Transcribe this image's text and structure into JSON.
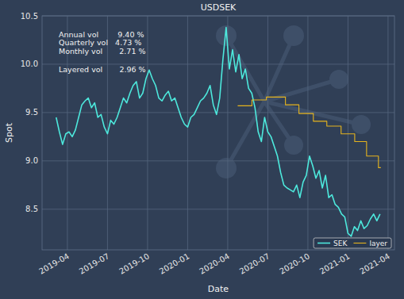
{
  "chart_data": {
    "type": "line",
    "title": "USDSEK",
    "x_label": "Date",
    "y_label": "Spot",
    "xlim": [
      2019.092,
      2021.29
    ],
    "ylim": [
      8.08,
      10.5
    ],
    "xticks": [
      {
        "value": 2019.25,
        "label": "2019-04"
      },
      {
        "value": 2019.5,
        "label": "2019-07"
      },
      {
        "value": 2019.75,
        "label": "2019-10"
      },
      {
        "value": 2020.0,
        "label": "2020-01"
      },
      {
        "value": 2020.25,
        "label": "2020-04"
      },
      {
        "value": 2020.5,
        "label": "2020-07"
      },
      {
        "value": 2020.75,
        "label": "2020-10"
      },
      {
        "value": 2021.0,
        "label": "2021-01"
      },
      {
        "value": 2021.25,
        "label": "2021-04"
      }
    ],
    "yticks": [
      8.5,
      {
        "value": 9,
        "label": "9.0"
      },
      9.5,
      {
        "value": 10,
        "label": "10.0"
      },
      10.5
    ],
    "grid": true,
    "legend": "lower right",
    "annotations": [
      "Annual vol        9.40 %",
      "Quarterly vol   4.73 %",
      "Monthly vol       2.71 %",
      "Layered vol       2.96 %"
    ],
    "series": [
      {
        "name": "SEK",
        "color": "#4de8dc",
        "x": [
          2019.18,
          2019.2,
          2019.22,
          2019.24,
          2019.26,
          2019.28,
          2019.3,
          2019.32,
          2019.34,
          2019.36,
          2019.38,
          2019.4,
          2019.42,
          2019.44,
          2019.46,
          2019.48,
          2019.5,
          2019.52,
          2019.54,
          2019.56,
          2019.58,
          2019.6,
          2019.62,
          2019.64,
          2019.66,
          2019.68,
          2019.7,
          2019.72,
          2019.74,
          2019.76,
          2019.78,
          2019.8,
          2019.82,
          2019.84,
          2019.86,
          2019.88,
          2019.9,
          2019.92,
          2019.94,
          2019.96,
          2019.98,
          2020.0,
          2020.02,
          2020.04,
          2020.06,
          2020.08,
          2020.1,
          2020.12,
          2020.14,
          2020.16,
          2020.18,
          2020.2,
          2020.22,
          2020.24,
          2020.26,
          2020.28,
          2020.3,
          2020.32,
          2020.34,
          2020.36,
          2020.38,
          2020.4,
          2020.42,
          2020.44,
          2020.46,
          2020.48,
          2020.5,
          2020.52,
          2020.54,
          2020.56,
          2020.58,
          2020.6,
          2020.62,
          2020.64,
          2020.66,
          2020.68,
          2020.7,
          2020.72,
          2020.74,
          2020.76,
          2020.78,
          2020.8,
          2020.82,
          2020.84,
          2020.86,
          2020.88,
          2020.9,
          2020.92,
          2020.94,
          2020.96,
          2020.98,
          2021.0,
          2021.02,
          2021.04,
          2021.06,
          2021.08,
          2021.1,
          2021.12,
          2021.14,
          2021.16,
          2021.18,
          2021.2
        ],
        "values": [
          9.45,
          9.3,
          9.17,
          9.28,
          9.3,
          9.25,
          9.32,
          9.45,
          9.58,
          9.62,
          9.65,
          9.55,
          9.6,
          9.45,
          9.48,
          9.35,
          9.28,
          9.42,
          9.38,
          9.45,
          9.55,
          9.65,
          9.6,
          9.7,
          9.78,
          9.82,
          9.65,
          9.7,
          9.85,
          9.94,
          9.85,
          9.78,
          9.65,
          9.62,
          9.68,
          9.72,
          9.62,
          9.65,
          9.55,
          9.45,
          9.38,
          9.35,
          9.45,
          9.48,
          9.55,
          9.62,
          9.65,
          9.7,
          9.78,
          9.58,
          9.48,
          9.65,
          10.05,
          10.38,
          9.95,
          10.15,
          9.92,
          10.1,
          9.85,
          9.95,
          9.75,
          9.7,
          9.55,
          9.3,
          9.2,
          9.45,
          9.3,
          9.25,
          9.15,
          9.05,
          8.88,
          8.75,
          8.72,
          8.7,
          8.68,
          8.75,
          8.62,
          8.78,
          8.85,
          9.05,
          8.95,
          8.82,
          8.9,
          8.72,
          8.85,
          8.62,
          8.65,
          8.55,
          8.52,
          8.45,
          8.42,
          8.25,
          8.22,
          8.32,
          8.28,
          8.38,
          8.3,
          8.33,
          8.4,
          8.45,
          8.38,
          8.45
        ]
      },
      {
        "name": "layer",
        "color": "#e5b41e",
        "line_style": "steps",
        "x": [
          2020.312,
          2020.401,
          2020.491,
          2020.61,
          2020.694,
          2020.784,
          2020.868,
          2020.957,
          2021.042,
          2021.116,
          2021.19,
          2021.205
        ],
        "values": [
          9.57,
          9.63,
          9.66,
          9.58,
          9.49,
          9.41,
          9.36,
          9.28,
          9.2,
          9.05,
          8.93,
          8.93
        ]
      }
    ]
  }
}
